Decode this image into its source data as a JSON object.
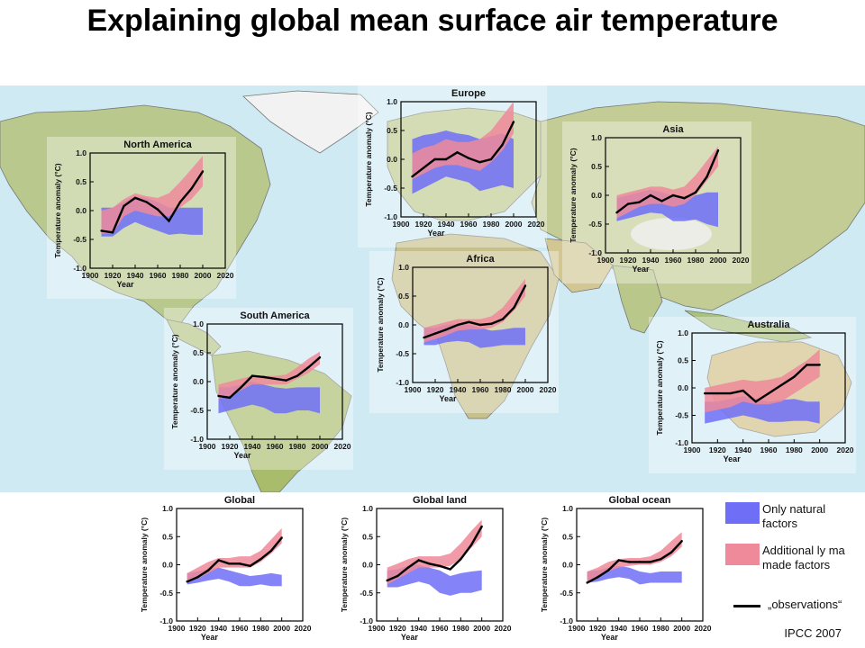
{
  "title": "Explaining global mean surface air temperature",
  "legend": {
    "natural": {
      "label_line1": "Only natural",
      "label_line2": "factors",
      "color": "#6e6ef7"
    },
    "anthropogenic": {
      "label_line1": "Additional ly ma",
      "label_line2": "made factors",
      "color": "#ee8a9a"
    },
    "observations": {
      "label": "„observations“",
      "color": "#000000"
    }
  },
  "credit": "IPCC 2007",
  "chart_data": [
    {
      "type": "area",
      "title": "North America",
      "xlabel": "Year",
      "ylabel": "Temperature anomaly (°C)",
      "xlim": [
        1900,
        2020
      ],
      "ylim": [
        -1.0,
        1.0
      ],
      "xticks": [
        "1900",
        "1920",
        "1940",
        "1960",
        "1980",
        "2000",
        "2020"
      ],
      "yticks": [
        "1.0",
        "0.5",
        "0.0",
        "-0.5",
        "-1.0"
      ],
      "x": [
        1910,
        1920,
        1930,
        1940,
        1950,
        1960,
        1970,
        1980,
        1990,
        2000
      ],
      "observations": [
        -0.35,
        -0.38,
        0.08,
        0.22,
        0.15,
        0.02,
        -0.18,
        0.15,
        0.38,
        0.68
      ],
      "natural_low": [
        -0.45,
        -0.45,
        -0.3,
        -0.2,
        -0.28,
        -0.35,
        -0.42,
        -0.4,
        -0.42,
        -0.42
      ],
      "natural_high": [
        0.05,
        0.05,
        0.15,
        0.25,
        0.22,
        0.15,
        0.05,
        0.05,
        0.05,
        0.05
      ],
      "anthro_low": [
        -0.4,
        -0.4,
        -0.1,
        0.0,
        -0.05,
        -0.1,
        -0.1,
        0.05,
        0.2,
        0.42
      ],
      "anthro_high": [
        0.0,
        0.05,
        0.2,
        0.3,
        0.25,
        0.22,
        0.3,
        0.5,
        0.72,
        0.95
      ]
    },
    {
      "type": "area",
      "title": "Europe",
      "xlabel": "Year",
      "ylabel": "Temperature anomaly (°C)",
      "xlim": [
        1900,
        2020
      ],
      "ylim": [
        -1.0,
        1.0
      ],
      "xticks": [
        "1900",
        "1920",
        "1940",
        "1960",
        "1980",
        "2000",
        "2020"
      ],
      "yticks": [
        "1.0",
        "0.5",
        "0.0",
        "-0.5",
        "-1.0"
      ],
      "x": [
        1910,
        1920,
        1930,
        1940,
        1950,
        1960,
        1970,
        1980,
        1990,
        2000
      ],
      "observations": [
        -0.3,
        -0.15,
        0.0,
        0.0,
        0.12,
        0.02,
        -0.05,
        0.0,
        0.25,
        0.65
      ],
      "natural_low": [
        -0.6,
        -0.5,
        -0.4,
        -0.3,
        -0.35,
        -0.4,
        -0.55,
        -0.5,
        -0.45,
        -0.5
      ],
      "natural_high": [
        0.35,
        0.42,
        0.45,
        0.5,
        0.45,
        0.42,
        0.35,
        0.4,
        0.45,
        0.35
      ],
      "anthro_low": [
        -0.35,
        -0.25,
        -0.15,
        -0.1,
        -0.1,
        -0.15,
        -0.2,
        -0.05,
        0.15,
        0.45
      ],
      "anthro_high": [
        0.1,
        0.2,
        0.25,
        0.35,
        0.3,
        0.3,
        0.35,
        0.5,
        0.75,
        1.0
      ]
    },
    {
      "type": "area",
      "title": "Asia",
      "xlabel": "Year",
      "ylabel": "Temperature anomaly (°C)",
      "xlim": [
        1900,
        2020
      ],
      "ylim": [
        -1.0,
        1.0
      ],
      "xticks": [
        "1900",
        "1920",
        "1940",
        "1960",
        "1980",
        "2000",
        "2020"
      ],
      "yticks": [
        "1.0",
        "0.5",
        "0.0",
        "-0.5",
        "-1.0"
      ],
      "x": [
        1910,
        1920,
        1930,
        1940,
        1950,
        1960,
        1970,
        1980,
        1990,
        2000
      ],
      "observations": [
        -0.3,
        -0.15,
        -0.12,
        0.0,
        -0.1,
        0.0,
        -0.05,
        0.05,
        0.32,
        0.78
      ],
      "natural_low": [
        -0.45,
        -0.4,
        -0.35,
        -0.3,
        -0.32,
        -0.45,
        -0.45,
        -0.42,
        -0.5,
        -0.55
      ],
      "natural_high": [
        -0.05,
        0.0,
        0.05,
        0.1,
        0.05,
        0.0,
        -0.05,
        0.0,
        0.05,
        0.05
      ],
      "anthro_low": [
        -0.4,
        -0.3,
        -0.2,
        -0.15,
        -0.15,
        -0.2,
        -0.15,
        0.0,
        0.25,
        0.5
      ],
      "anthro_high": [
        0.0,
        0.05,
        0.1,
        0.15,
        0.15,
        0.1,
        0.15,
        0.35,
        0.6,
        0.85
      ]
    },
    {
      "type": "area",
      "title": "Africa",
      "xlabel": "Year",
      "ylabel": "Temperature anomaly (°C)",
      "xlim": [
        1900,
        2020
      ],
      "ylim": [
        -1.0,
        1.0
      ],
      "xticks": [
        "1900",
        "1920",
        "1940",
        "1960",
        "1980",
        "2000",
        "2020"
      ],
      "yticks": [
        "1.0",
        "0.5",
        "0.0",
        "-0.5",
        "-1.0"
      ],
      "x": [
        1910,
        1920,
        1930,
        1940,
        1950,
        1960,
        1970,
        1980,
        1990,
        2000
      ],
      "observations": [
        -0.22,
        -0.15,
        -0.08,
        0.0,
        0.05,
        0.0,
        0.02,
        0.1,
        0.3,
        0.68
      ],
      "natural_low": [
        -0.35,
        -0.35,
        -0.3,
        -0.28,
        -0.3,
        -0.4,
        -0.38,
        -0.35,
        -0.35,
        -0.35
      ],
      "natural_high": [
        -0.05,
        -0.05,
        0.0,
        0.02,
        0.0,
        -0.05,
        -0.1,
        -0.08,
        -0.05,
        -0.05
      ],
      "anthro_low": [
        -0.3,
        -0.25,
        -0.18,
        -0.1,
        -0.08,
        -0.08,
        -0.05,
        0.05,
        0.25,
        0.5
      ],
      "anthro_high": [
        -0.05,
        0.0,
        0.05,
        0.1,
        0.1,
        0.1,
        0.15,
        0.3,
        0.55,
        0.8
      ]
    },
    {
      "type": "area",
      "title": "South America",
      "xlabel": "Year",
      "ylabel": "Temperature anomaly (°C)",
      "xlim": [
        1900,
        2020
      ],
      "ylim": [
        -1.0,
        1.0
      ],
      "xticks": [
        "1900",
        "1920",
        "1940",
        "1960",
        "1980",
        "2000",
        "2020"
      ],
      "yticks": [
        "1.0",
        "0.5",
        "0.0",
        "-0.5",
        "-1.0"
      ],
      "x": [
        1910,
        1920,
        1930,
        1940,
        1950,
        1960,
        1970,
        1980,
        1990,
        2000
      ],
      "observations": [
        -0.25,
        -0.28,
        -0.1,
        0.1,
        0.08,
        0.05,
        0.02,
        0.1,
        0.25,
        0.42
      ],
      "natural_low": [
        -0.55,
        -0.5,
        -0.45,
        -0.4,
        -0.45,
        -0.55,
        -0.55,
        -0.5,
        -0.5,
        -0.55
      ],
      "natural_high": [
        -0.1,
        -0.1,
        -0.05,
        0.0,
        -0.05,
        -0.1,
        -0.12,
        -0.1,
        -0.1,
        -0.1
      ],
      "anthro_low": [
        -0.3,
        -0.25,
        -0.15,
        -0.05,
        -0.05,
        -0.05,
        -0.05,
        0.05,
        0.15,
        0.3
      ],
      "anthro_high": [
        -0.05,
        0.0,
        0.05,
        0.1,
        0.1,
        0.1,
        0.12,
        0.25,
        0.4,
        0.52
      ]
    },
    {
      "type": "area",
      "title": "Australia",
      "xlabel": "Year",
      "ylabel": "Temperature anomaly (°C)",
      "xlim": [
        1900,
        2020
      ],
      "ylim": [
        -1.0,
        1.0
      ],
      "xticks": [
        "1900",
        "1920",
        "1940",
        "1960",
        "1980",
        "2000",
        "2020"
      ],
      "yticks": [
        "1.0",
        "0.5",
        "0.0",
        "-0.5",
        "-1.0"
      ],
      "x": [
        1910,
        1920,
        1930,
        1940,
        1950,
        1960,
        1970,
        1980,
        1990,
        2000
      ],
      "observations": [
        -0.1,
        -0.1,
        -0.1,
        -0.05,
        -0.25,
        -0.1,
        0.05,
        0.2,
        0.42,
        0.42
      ],
      "natural_low": [
        -0.65,
        -0.6,
        -0.55,
        -0.5,
        -0.55,
        -0.62,
        -0.62,
        -0.6,
        -0.6,
        -0.65
      ],
      "natural_high": [
        -0.25,
        -0.25,
        -0.2,
        -0.15,
        -0.2,
        -0.25,
        -0.22,
        -0.2,
        -0.25,
        -0.25
      ],
      "anthro_low": [
        -0.45,
        -0.4,
        -0.35,
        -0.25,
        -0.3,
        -0.3,
        -0.25,
        -0.1,
        0.05,
        0.2
      ],
      "anthro_high": [
        0.0,
        0.05,
        0.1,
        0.15,
        0.12,
        0.15,
        0.2,
        0.35,
        0.5,
        0.7
      ]
    },
    {
      "type": "area",
      "title": "Global",
      "xlabel": "Year",
      "ylabel": "Temperature anomaly (°C)",
      "xlim": [
        1900,
        2020
      ],
      "ylim": [
        -1.0,
        1.0
      ],
      "xticks": [
        "1900",
        "1920",
        "1940",
        "1960",
        "1980",
        "2000",
        "2020"
      ],
      "yticks": [
        "1.0",
        "0.5",
        "0.0",
        "-0.5",
        "-1.0"
      ],
      "x": [
        1910,
        1920,
        1930,
        1940,
        1950,
        1960,
        1970,
        1980,
        1990,
        2000
      ],
      "observations": [
        -0.3,
        -0.22,
        -0.1,
        0.08,
        0.02,
        0.02,
        -0.02,
        0.1,
        0.25,
        0.48
      ],
      "natural_low": [
        -0.35,
        -0.32,
        -0.28,
        -0.25,
        -0.3,
        -0.38,
        -0.38,
        -0.35,
        -0.38,
        -0.38
      ],
      "natural_high": [
        -0.15,
        -0.12,
        -0.08,
        -0.05,
        -0.1,
        -0.15,
        -0.2,
        -0.18,
        -0.15,
        -0.18
      ],
      "anthro_low": [
        -0.3,
        -0.25,
        -0.15,
        -0.05,
        -0.05,
        -0.05,
        -0.05,
        0.05,
        0.2,
        0.38
      ],
      "anthro_high": [
        -0.15,
        -0.05,
        0.05,
        0.12,
        0.12,
        0.15,
        0.15,
        0.25,
        0.45,
        0.65
      ]
    },
    {
      "type": "area",
      "title": "Global land",
      "xlabel": "Year",
      "ylabel": "Temperature anomaly (°C)",
      "xlim": [
        1900,
        2020
      ],
      "ylim": [
        -1.0,
        1.0
      ],
      "xticks": [
        "1900",
        "1920",
        "1940",
        "1960",
        "1980",
        "2000",
        "2020"
      ],
      "yticks": [
        "1.0",
        "0.5",
        "0.0",
        "-0.5",
        "-1.0"
      ],
      "x": [
        1910,
        1920,
        1930,
        1940,
        1950,
        1960,
        1970,
        1980,
        1990,
        2000
      ],
      "observations": [
        -0.28,
        -0.2,
        -0.05,
        0.08,
        0.02,
        -0.02,
        -0.08,
        0.1,
        0.35,
        0.68
      ],
      "natural_low": [
        -0.4,
        -0.4,
        -0.35,
        -0.3,
        -0.35,
        -0.5,
        -0.55,
        -0.5,
        -0.5,
        -0.45
      ],
      "natural_high": [
        -0.1,
        -0.08,
        -0.02,
        0.0,
        -0.05,
        -0.1,
        -0.2,
        -0.15,
        -0.12,
        -0.1
      ],
      "anthro_low": [
        -0.35,
        -0.25,
        -0.15,
        -0.05,
        -0.05,
        -0.05,
        -0.02,
        0.1,
        0.3,
        0.5
      ],
      "anthro_high": [
        -0.05,
        0.02,
        0.1,
        0.15,
        0.15,
        0.15,
        0.2,
        0.38,
        0.6,
        0.8
      ]
    },
    {
      "type": "area",
      "title": "Global ocean",
      "xlabel": "Year",
      "ylabel": "Temperature anomaly (°C)",
      "xlim": [
        1900,
        2020
      ],
      "ylim": [
        -1.0,
        1.0
      ],
      "xticks": [
        "1900",
        "1920",
        "1940",
        "1960",
        "1980",
        "2000",
        "2020"
      ],
      "yticks": [
        "1.0",
        "0.5",
        "0.0",
        "-0.5",
        "-1.0"
      ],
      "x": [
        1910,
        1920,
        1930,
        1940,
        1950,
        1960,
        1970,
        1980,
        1990,
        2000
      ],
      "observations": [
        -0.32,
        -0.22,
        -0.1,
        0.08,
        0.05,
        0.05,
        0.05,
        0.1,
        0.22,
        0.42
      ],
      "natural_low": [
        -0.32,
        -0.3,
        -0.25,
        -0.22,
        -0.25,
        -0.35,
        -0.32,
        -0.32,
        -0.32,
        -0.32
      ],
      "natural_high": [
        -0.12,
        -0.1,
        -0.05,
        -0.02,
        -0.05,
        -0.12,
        -0.15,
        -0.12,
        -0.12,
        -0.12
      ],
      "anthro_low": [
        -0.3,
        -0.22,
        -0.12,
        -0.05,
        -0.02,
        0.0,
        0.0,
        0.05,
        0.15,
        0.32
      ],
      "anthro_high": [
        -0.12,
        -0.05,
        0.05,
        0.1,
        0.12,
        0.12,
        0.15,
        0.25,
        0.42,
        0.58
      ]
    }
  ]
}
